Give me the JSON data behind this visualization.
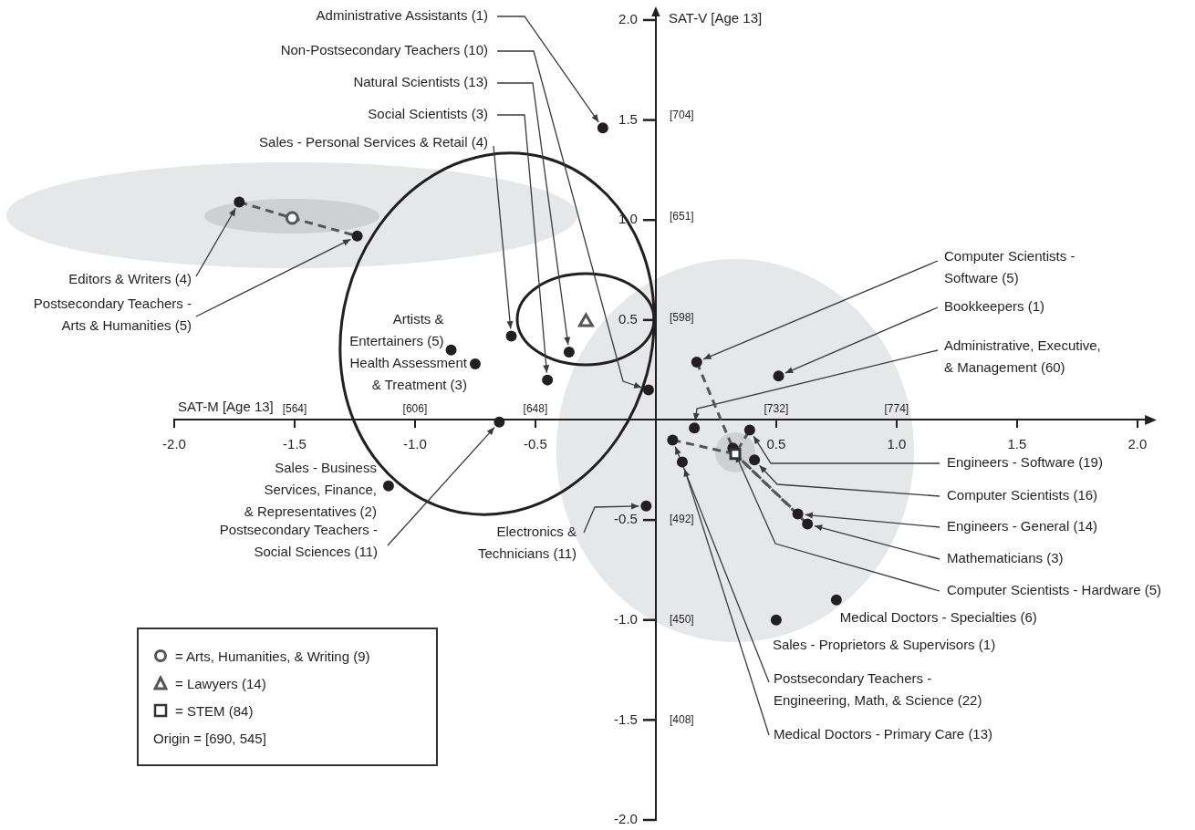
{
  "chart_data": {
    "type": "scatter",
    "xlabel": "SAT-M [Age 13]",
    "ylabel": "SAT-V [Age 13]",
    "xlim": [
      -2,
      2.05
    ],
    "ylim": [
      -2,
      2.05
    ],
    "xticks": [
      {
        "value": -2,
        "label": "-2.0"
      },
      {
        "value": -1.5,
        "label": "-1.5"
      },
      {
        "value": -1,
        "label": "-1.0"
      },
      {
        "value": -0.5,
        "label": "-0.5"
      },
      {
        "value": 0.5,
        "label": "0.5"
      },
      {
        "value": 1,
        "label": "1.0"
      },
      {
        "value": 1.5,
        "label": "1.5"
      },
      {
        "value": 2,
        "label": "2.0"
      }
    ],
    "yticks": [
      {
        "value": -2,
        "label": "-2.0"
      },
      {
        "value": -1.5,
        "label": "-1.5"
      },
      {
        "value": -1,
        "label": "-1.0"
      },
      {
        "value": -0.5,
        "label": "-0.5"
      },
      {
        "value": 0.5,
        "label": "0.5"
      },
      {
        "value": 1,
        "label": "1.0"
      },
      {
        "value": 1.5,
        "label": "1.5"
      },
      {
        "value": 2,
        "label": "2.0"
      }
    ],
    "x2lim": [
      522,
      862.2
    ],
    "x2ticks": [
      {
        "value": 564,
        "label": "[564]"
      },
      {
        "value": 606,
        "label": "[606]"
      },
      {
        "value": 648,
        "label": "[648]"
      },
      {
        "value": 732,
        "label": "[732]"
      },
      {
        "value": 774,
        "label": "[774]"
      }
    ],
    "legend": "bottom left",
    "series": [
      {
        "type": "scatter",
        "marker": "circle",
        "color": "#231f20",
        "x": [
          -0.22,
          -0.03,
          -0.36,
          -0.45,
          -0.6,
          -1.73,
          -1.24,
          -0.85,
          -0.75,
          -0.65,
          -1.11,
          -0.04,
          0.17,
          0.51,
          0.16,
          0.39,
          0.41,
          0.59,
          0.63,
          0.32,
          0.75,
          0.5,
          0.07,
          0.11
        ],
        "values": [
          1.46,
          0.15,
          0.34,
          0.2,
          0.42,
          1.09,
          0.92,
          0.35,
          0.28,
          -0.01,
          -0.33,
          -0.43,
          0.29,
          0.22,
          -0.04,
          -0.05,
          -0.2,
          -0.47,
          -0.52,
          -0.14,
          -0.9,
          -1.0,
          -0.1,
          -0.21
        ]
      },
      {
        "type": "scatter",
        "name": "= Arts, Humanities, & Writing (9)",
        "marker": "circle",
        "color": "#555555",
        "x": [
          -1.51
        ],
        "values": [
          1.01
        ]
      },
      {
        "type": "scatter",
        "name": "= Lawyers (14)",
        "marker": "triangle",
        "color": "#555555",
        "x": [
          -0.29
        ],
        "values": [
          0.49
        ]
      },
      {
        "type": "scatter",
        "name": "= STEM (84)",
        "marker": "square",
        "color": "#333333",
        "x": [
          0.33
        ],
        "values": [
          -0.17
        ]
      },
      {
        "type": "line",
        "marker": "none",
        "line_style": "dashed",
        "color": "#555555",
        "x": [
          -1.73,
          -1.51,
          -1.24
        ],
        "values": [
          1.09,
          1.01,
          0.92
        ]
      },
      {
        "type": "line",
        "marker": "none",
        "line_style": "dashed",
        "color": "#555555",
        "x": [
          0.17,
          0.33,
          0.63
        ],
        "values": [
          0.29,
          -0.17,
          -0.52
        ]
      },
      {
        "type": "line",
        "marker": "none",
        "line_style": "dashed",
        "color": "#555555",
        "x": [
          0.07,
          0.33,
          0.39
        ],
        "values": [
          -0.1,
          -0.17,
          -0.05
        ]
      },
      {
        "type": "line",
        "marker": "none",
        "line_style": "dashed",
        "color": "#555555",
        "x": [
          0.33,
          0.59
        ],
        "values": [
          -0.17,
          -0.47
        ]
      }
    ],
    "annotations": [
      {
        "text": "Administrative Assistants (1)",
        "x": -0.22,
        "y": 1.46
      },
      {
        "text": "Non-Postsecondary Teachers (10)",
        "x": -0.03,
        "y": 0.15
      },
      {
        "text": "Natural Scientists (13)",
        "x": -0.36,
        "y": 0.34
      },
      {
        "text": "Social Scientists (3)",
        "x": -0.45,
        "y": 0.2
      },
      {
        "text": "Sales - Personal Services & Retail (4)",
        "x": -0.6,
        "y": 0.42
      },
      {
        "text": "Editors & Writers (4)",
        "x": -1.73,
        "y": 1.09
      },
      {
        "text": "Postsecondary Teachers - Arts & Humanities (5)",
        "x": -1.24,
        "y": 0.92
      },
      {
        "text": "Artists & Entertainers (5)",
        "x": -0.85,
        "y": 0.35
      },
      {
        "text": "Health Assessment & Treatment (3)",
        "x": -0.75,
        "y": 0.28
      },
      {
        "text": "Postsecondary Teachers - Social Sciences (11)",
        "x": -0.65,
        "y": -0.01
      },
      {
        "text": "Sales - Business Services, Finance, & Representatives (2)",
        "x": -1.11,
        "y": -0.33
      },
      {
        "text": "Electronics & Technicians (11)",
        "x": -0.04,
        "y": -0.43
      },
      {
        "text": "Computer Scientists - Software (5)",
        "x": 0.17,
        "y": 0.29
      },
      {
        "text": "Bookkeepers (1)",
        "x": 0.51,
        "y": 0.22
      },
      {
        "text": "Administrative, Executive, & Management (60)",
        "x": 0.16,
        "y": -0.04
      },
      {
        "text": "Engineers - Software (19)",
        "x": 0.39,
        "y": -0.05
      },
      {
        "text": "Computer Scientists (16)",
        "x": 0.41,
        "y": -0.2
      },
      {
        "text": "Engineers - General (14)",
        "x": 0.59,
        "y": -0.47
      },
      {
        "text": "Mathematicians (3)",
        "x": 0.63,
        "y": -0.52
      },
      {
        "text": "Computer Scientists - Hardware (5)",
        "x": 0.32,
        "y": -0.14
      },
      {
        "text": "Medical Doctors - Specialties (6)",
        "x": 0.75,
        "y": -0.9
      },
      {
        "text": "Sales - Proprietors & Supervisors (1)",
        "x": 0.5,
        "y": -1.0
      },
      {
        "text": "Postsecondary Teachers - Engineering, Math, & Science (22)",
        "x": 0.07,
        "y": -0.1
      },
      {
        "text": "Medical Doctors - Primary Care (13)",
        "x": 0.11,
        "y": -0.21
      },
      "[704]",
      "[651]",
      "[598]",
      "[492]",
      "[450]",
      "[408]",
      "Origin = [690, 545]"
    ]
  }
}
